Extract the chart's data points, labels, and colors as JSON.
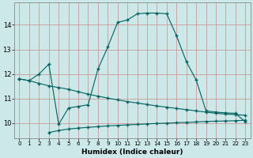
{
  "xlabel": "Humidex (Indice chaleur)",
  "bg_color": "#cce8e8",
  "grid_color": "#cc9999",
  "line_color": "#006060",
  "xlim": [
    -0.5,
    23.5
  ],
  "ylim": [
    9.4,
    14.9
  ],
  "xticks": [
    0,
    1,
    2,
    3,
    4,
    5,
    6,
    7,
    8,
    9,
    10,
    11,
    12,
    13,
    14,
    15,
    16,
    17,
    18,
    19,
    20,
    21,
    22,
    23
  ],
  "yticks": [
    10,
    11,
    12,
    13,
    14
  ],
  "curve1_x": [
    0,
    1,
    2,
    3,
    4,
    5,
    6,
    7,
    8,
    9,
    10,
    11,
    12,
    13,
    14,
    15,
    16,
    17,
    18,
    19,
    20,
    21,
    22,
    23
  ],
  "curve1_y": [
    11.8,
    11.73,
    11.62,
    11.52,
    11.45,
    11.38,
    11.28,
    11.18,
    11.1,
    11.02,
    10.95,
    10.88,
    10.82,
    10.76,
    10.7,
    10.65,
    10.6,
    10.55,
    10.5,
    10.45,
    10.4,
    10.37,
    10.35,
    10.32
  ],
  "curve2_x": [
    0,
    1,
    2,
    3,
    4,
    5,
    6,
    7,
    8,
    9,
    10,
    11,
    12,
    13,
    14,
    15,
    16,
    17,
    18,
    19,
    20,
    21,
    22,
    23
  ],
  "curve2_y": [
    11.8,
    11.73,
    12.0,
    12.4,
    9.95,
    10.62,
    10.68,
    10.75,
    12.2,
    13.1,
    14.1,
    14.2,
    14.45,
    14.48,
    14.48,
    14.45,
    13.55,
    12.5,
    11.75,
    10.5,
    10.45,
    10.42,
    10.4,
    10.05
  ],
  "curve3_x": [
    3,
    4,
    5,
    6,
    7,
    8,
    9,
    10,
    11,
    12,
    13,
    14,
    15,
    16,
    17,
    18,
    19,
    20,
    21,
    22,
    23
  ],
  "curve3_y": [
    9.62,
    9.7,
    9.76,
    9.8,
    9.83,
    9.86,
    9.89,
    9.91,
    9.93,
    9.95,
    9.97,
    9.99,
    10.0,
    10.02,
    10.03,
    10.05,
    10.07,
    10.08,
    10.09,
    10.1,
    10.12
  ]
}
